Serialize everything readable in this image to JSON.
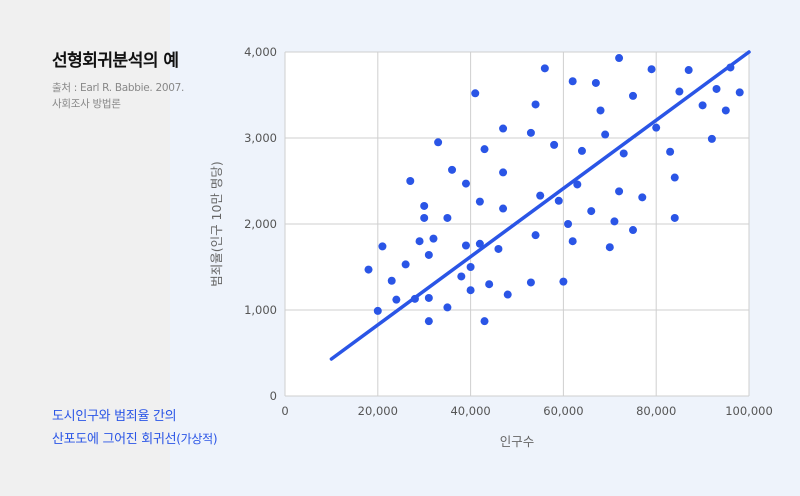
{
  "title": "선형회귀분석의 예",
  "source": {
    "line1": "출처 : Earl R. Babbie. 2007.",
    "line2": "사회조사 방법론"
  },
  "caption": {
    "line1": "도시인구와 범죄율 간의",
    "line2_main": "산포도에 그어진 회귀선",
    "line2_suffix": "(가상적)"
  },
  "colors": {
    "accent": "#2a55e6",
    "point": "#2a55e6",
    "grid": "#cfcfcf",
    "plot_bg": "#ffffff",
    "page_bg": "#eef3fb",
    "left_bg": "#f0f0f0"
  },
  "chart_data": {
    "type": "scatter",
    "xlabel": "인구수",
    "ylabel": "범죄율(인구 10만 명당)",
    "xlim": [
      0,
      100000
    ],
    "ylim": [
      0,
      4000
    ],
    "x_ticks": [
      0,
      20000,
      40000,
      60000,
      80000,
      100000
    ],
    "x_tick_labels": [
      "0",
      "20,000",
      "40,000",
      "60,000",
      "80,000",
      "100,000"
    ],
    "y_ticks": [
      0,
      1000,
      2000,
      3000,
      4000
    ],
    "y_tick_labels": [
      "0",
      "1,000",
      "2,000",
      "3,000",
      "4,000"
    ],
    "grid": true,
    "regression_line": {
      "x": [
        10000,
        100000
      ],
      "y": [
        430,
        4000
      ]
    },
    "points": [
      [
        18000,
        1470
      ],
      [
        20000,
        990
      ],
      [
        21000,
        1740
      ],
      [
        23000,
        1340
      ],
      [
        24000,
        1120
      ],
      [
        26000,
        1530
      ],
      [
        27000,
        2500
      ],
      [
        28000,
        1130
      ],
      [
        29000,
        1800
      ],
      [
        30000,
        2070
      ],
      [
        30000,
        2210
      ],
      [
        31000,
        1140
      ],
      [
        31000,
        870
      ],
      [
        31000,
        1640
      ],
      [
        32000,
        1830
      ],
      [
        33000,
        2950
      ],
      [
        35000,
        1030
      ],
      [
        35000,
        2070
      ],
      [
        36000,
        2630
      ],
      [
        38000,
        1390
      ],
      [
        39000,
        1750
      ],
      [
        39000,
        2470
      ],
      [
        40000,
        1230
      ],
      [
        40000,
        1500
      ],
      [
        41000,
        3520
      ],
      [
        42000,
        1770
      ],
      [
        42000,
        2260
      ],
      [
        43000,
        870
      ],
      [
        43000,
        2870
      ],
      [
        44000,
        1300
      ],
      [
        46000,
        1710
      ],
      [
        47000,
        3110
      ],
      [
        47000,
        2180
      ],
      [
        47000,
        2600
      ],
      [
        48000,
        1180
      ],
      [
        53000,
        1320
      ],
      [
        53000,
        3060
      ],
      [
        54000,
        1870
      ],
      [
        54000,
        3390
      ],
      [
        55000,
        2330
      ],
      [
        56000,
        3810
      ],
      [
        58000,
        2920
      ],
      [
        59000,
        2270
      ],
      [
        60000,
        1330
      ],
      [
        61000,
        2000
      ],
      [
        62000,
        1800
      ],
      [
        62000,
        3660
      ],
      [
        63000,
        2460
      ],
      [
        64000,
        2850
      ],
      [
        66000,
        2150
      ],
      [
        67000,
        3640
      ],
      [
        68000,
        3320
      ],
      [
        69000,
        3040
      ],
      [
        70000,
        1730
      ],
      [
        71000,
        2030
      ],
      [
        72000,
        2380
      ],
      [
        72000,
        3930
      ],
      [
        73000,
        2820
      ],
      [
        75000,
        1930
      ],
      [
        75000,
        3490
      ],
      [
        77000,
        2310
      ],
      [
        79000,
        3800
      ],
      [
        80000,
        3120
      ],
      [
        83000,
        2840
      ],
      [
        84000,
        2540
      ],
      [
        84000,
        2070
      ],
      [
        85000,
        3540
      ],
      [
        87000,
        3790
      ],
      [
        90000,
        3380
      ],
      [
        92000,
        2990
      ],
      [
        93000,
        3570
      ],
      [
        95000,
        3320
      ],
      [
        96000,
        3820
      ],
      [
        98000,
        3530
      ]
    ]
  }
}
